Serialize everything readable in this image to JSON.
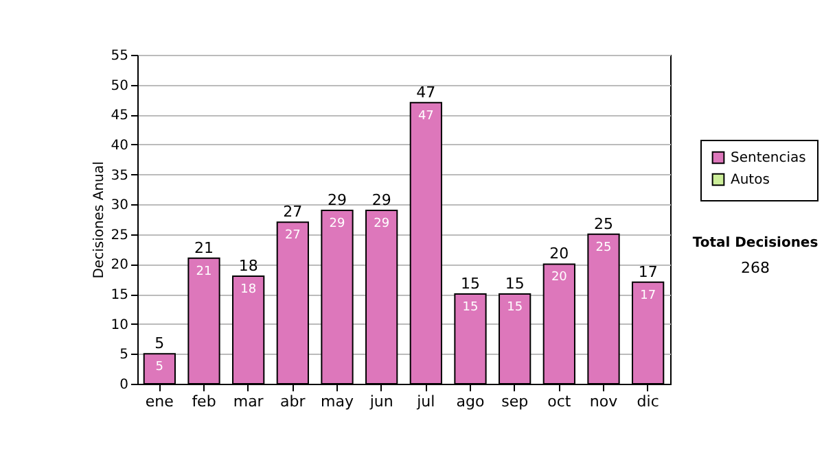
{
  "chart_data": {
    "type": "bar",
    "ylabel": "Decisiones Anual",
    "categories": [
      "ene",
      "feb",
      "mar",
      "abr",
      "may",
      "jun",
      "jul",
      "ago",
      "sep",
      "oct",
      "nov",
      "dic"
    ],
    "series": [
      {
        "name": "Sentencias",
        "color": "#dd77bb",
        "values": [
          5,
          21,
          18,
          27,
          29,
          29,
          47,
          15,
          15,
          20,
          25,
          17
        ]
      },
      {
        "name": "Autos",
        "color": "#ccee99",
        "values": [
          null,
          null,
          null,
          null,
          null,
          null,
          null,
          null,
          null,
          null,
          null,
          null
        ]
      }
    ],
    "totals": [
      "5",
      "21",
      "18",
      "27",
      "29",
      "29",
      "47",
      "15",
      "15",
      "20",
      "25",
      "17"
    ],
    "data_labels": true,
    "ylim": [
      0,
      55
    ],
    "yticks": [
      0,
      5,
      10,
      15,
      20,
      25,
      30,
      35,
      40,
      45,
      50,
      55
    ],
    "grid": "y",
    "legend": "right",
    "annotations": [
      "Total Decisiones",
      "268"
    ]
  }
}
